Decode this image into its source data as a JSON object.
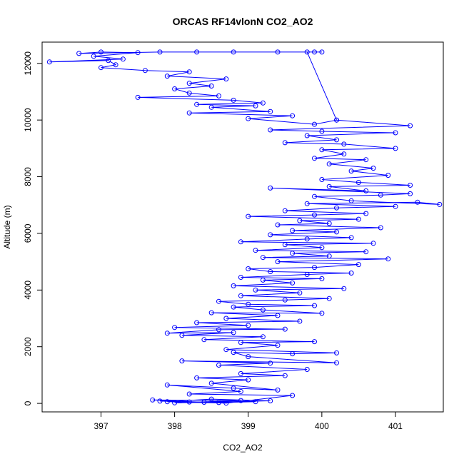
{
  "chart_data": {
    "type": "scatter",
    "title": "ORCAS RF14vlonN CO2_AO2",
    "xlabel": "CO2_AO2",
    "ylabel": "Altitude (m)",
    "xlim": [
      396.2,
      401.65
    ],
    "ylim": [
      -300,
      12750
    ],
    "xticks": [
      397,
      398,
      399,
      400,
      401
    ],
    "yticks": [
      0,
      2000,
      4000,
      6000,
      8000,
      10000,
      12000
    ],
    "grid": false,
    "style": {
      "color": "#0000ff",
      "marker": "open-circle",
      "connected": true
    },
    "series": [
      {
        "points": [
          [
            398.2,
            50
          ],
          [
            397.8,
            80
          ],
          [
            398.6,
            30
          ],
          [
            399.1,
            60
          ],
          [
            398.0,
            20
          ],
          [
            398.9,
            100
          ],
          [
            397.7,
            120
          ],
          [
            398.4,
            40
          ],
          [
            399.3,
            90
          ],
          [
            398.5,
            150
          ],
          [
            397.9,
            60
          ],
          [
            398.7,
            10
          ],
          [
            399.6,
            280
          ],
          [
            398.2,
            330
          ],
          [
            398.9,
            420
          ],
          [
            397.9,
            650
          ],
          [
            398.8,
            540
          ],
          [
            399.4,
            470
          ],
          [
            398.5,
            710
          ],
          [
            399.0,
            830
          ],
          [
            398.3,
            900
          ],
          [
            399.5,
            980
          ],
          [
            398.9,
            1050
          ],
          [
            399.8,
            1200
          ],
          [
            398.6,
            1350
          ],
          [
            399.3,
            1420
          ],
          [
            398.1,
            1500
          ],
          [
            400.2,
            1430
          ],
          [
            399.0,
            1650
          ],
          [
            398.8,
            1800
          ],
          [
            399.6,
            1750
          ],
          [
            400.2,
            1780
          ],
          [
            398.7,
            1900
          ],
          [
            399.4,
            2050
          ],
          [
            398.9,
            2150
          ],
          [
            399.9,
            2180
          ],
          [
            398.4,
            2250
          ],
          [
            399.2,
            2350
          ],
          [
            398.1,
            2400
          ],
          [
            398.8,
            2500
          ],
          [
            397.9,
            2480
          ],
          [
            398.6,
            2600
          ],
          [
            399.5,
            2620
          ],
          [
            398.0,
            2680
          ],
          [
            399.0,
            2750
          ],
          [
            398.3,
            2850
          ],
          [
            399.7,
            2900
          ],
          [
            398.7,
            3000
          ],
          [
            399.4,
            3100
          ],
          [
            398.5,
            3200
          ],
          [
            400.0,
            3180
          ],
          [
            399.2,
            3300
          ],
          [
            398.8,
            3400
          ],
          [
            399.9,
            3450
          ],
          [
            399.0,
            3500
          ],
          [
            398.6,
            3600
          ],
          [
            399.5,
            3650
          ],
          [
            400.1,
            3700
          ],
          [
            398.9,
            3800
          ],
          [
            399.7,
            3900
          ],
          [
            399.1,
            4000
          ],
          [
            400.3,
            4050
          ],
          [
            398.8,
            4150
          ],
          [
            399.6,
            4250
          ],
          [
            399.2,
            4350
          ],
          [
            400.0,
            4400
          ],
          [
            398.9,
            4450
          ],
          [
            399.8,
            4550
          ],
          [
            400.4,
            4600
          ],
          [
            399.3,
            4650
          ],
          [
            399.0,
            4750
          ],
          [
            399.9,
            4800
          ],
          [
            400.5,
            4900
          ],
          [
            399.4,
            5000
          ],
          [
            400.9,
            5100
          ],
          [
            399.2,
            5150
          ],
          [
            400.1,
            5200
          ],
          [
            399.6,
            5300
          ],
          [
            400.6,
            5350
          ],
          [
            399.1,
            5400
          ],
          [
            400.0,
            5500
          ],
          [
            399.5,
            5600
          ],
          [
            400.7,
            5650
          ],
          [
            398.9,
            5700
          ],
          [
            399.8,
            5800
          ],
          [
            400.4,
            5850
          ],
          [
            399.3,
            5950
          ],
          [
            400.2,
            6050
          ],
          [
            399.6,
            6100
          ],
          [
            400.8,
            6200
          ],
          [
            399.4,
            6300
          ],
          [
            400.1,
            6350
          ],
          [
            399.7,
            6450
          ],
          [
            400.5,
            6500
          ],
          [
            399.0,
            6600
          ],
          [
            399.9,
            6650
          ],
          [
            400.6,
            6700
          ],
          [
            399.5,
            6800
          ],
          [
            400.2,
            6900
          ],
          [
            401.0,
            6950
          ],
          [
            399.8,
            7050
          ],
          [
            401.3,
            7100
          ],
          [
            401.6,
            7020
          ],
          [
            400.4,
            7150
          ],
          [
            399.9,
            7300
          ],
          [
            400.8,
            7350
          ],
          [
            401.2,
            7400
          ],
          [
            399.3,
            7600
          ],
          [
            400.6,
            7500
          ],
          [
            400.1,
            7650
          ],
          [
            401.2,
            7700
          ],
          [
            400.5,
            7800
          ],
          [
            400.0,
            7900
          ],
          [
            400.9,
            8050
          ],
          [
            400.4,
            8200
          ],
          [
            400.7,
            8300
          ],
          [
            400.1,
            8450
          ],
          [
            400.6,
            8600
          ],
          [
            399.9,
            8650
          ],
          [
            400.3,
            8800
          ],
          [
            400.0,
            8950
          ],
          [
            401.0,
            9000
          ],
          [
            400.3,
            9150
          ],
          [
            399.5,
            9200
          ],
          [
            400.2,
            9300
          ],
          [
            399.8,
            9450
          ],
          [
            401.0,
            9550
          ],
          [
            400.0,
            9600
          ],
          [
            399.3,
            9650
          ],
          [
            401.2,
            9800
          ],
          [
            400.2,
            10000
          ],
          [
            399.9,
            9850
          ],
          [
            399.0,
            10050
          ],
          [
            399.6,
            10150
          ],
          [
            398.2,
            10250
          ],
          [
            399.3,
            10300
          ],
          [
            398.5,
            10450
          ],
          [
            399.1,
            10500
          ],
          [
            398.3,
            10550
          ],
          [
            399.2,
            10600
          ],
          [
            398.8,
            10700
          ],
          [
            397.5,
            10800
          ],
          [
            398.6,
            10850
          ],
          [
            398.2,
            10950
          ],
          [
            398.0,
            11100
          ],
          [
            398.5,
            11200
          ],
          [
            398.2,
            11300
          ],
          [
            398.7,
            11450
          ],
          [
            397.9,
            11550
          ],
          [
            398.2,
            11700
          ],
          [
            397.6,
            11750
          ],
          [
            397.0,
            11850
          ],
          [
            397.2,
            11950
          ],
          [
            397.1,
            12100
          ],
          [
            396.3,
            12050
          ],
          [
            397.3,
            12150
          ],
          [
            396.9,
            12250
          ],
          [
            397.5,
            12380
          ],
          [
            397.0,
            12400
          ],
          [
            396.7,
            12350
          ],
          [
            397.8,
            12400
          ],
          [
            398.3,
            12400
          ],
          [
            398.8,
            12400
          ],
          [
            399.4,
            12400
          ],
          [
            399.9,
            12400
          ],
          [
            400.0,
            12400
          ],
          [
            399.8,
            12400
          ],
          [
            400.2,
            10000
          ]
        ]
      }
    ]
  }
}
